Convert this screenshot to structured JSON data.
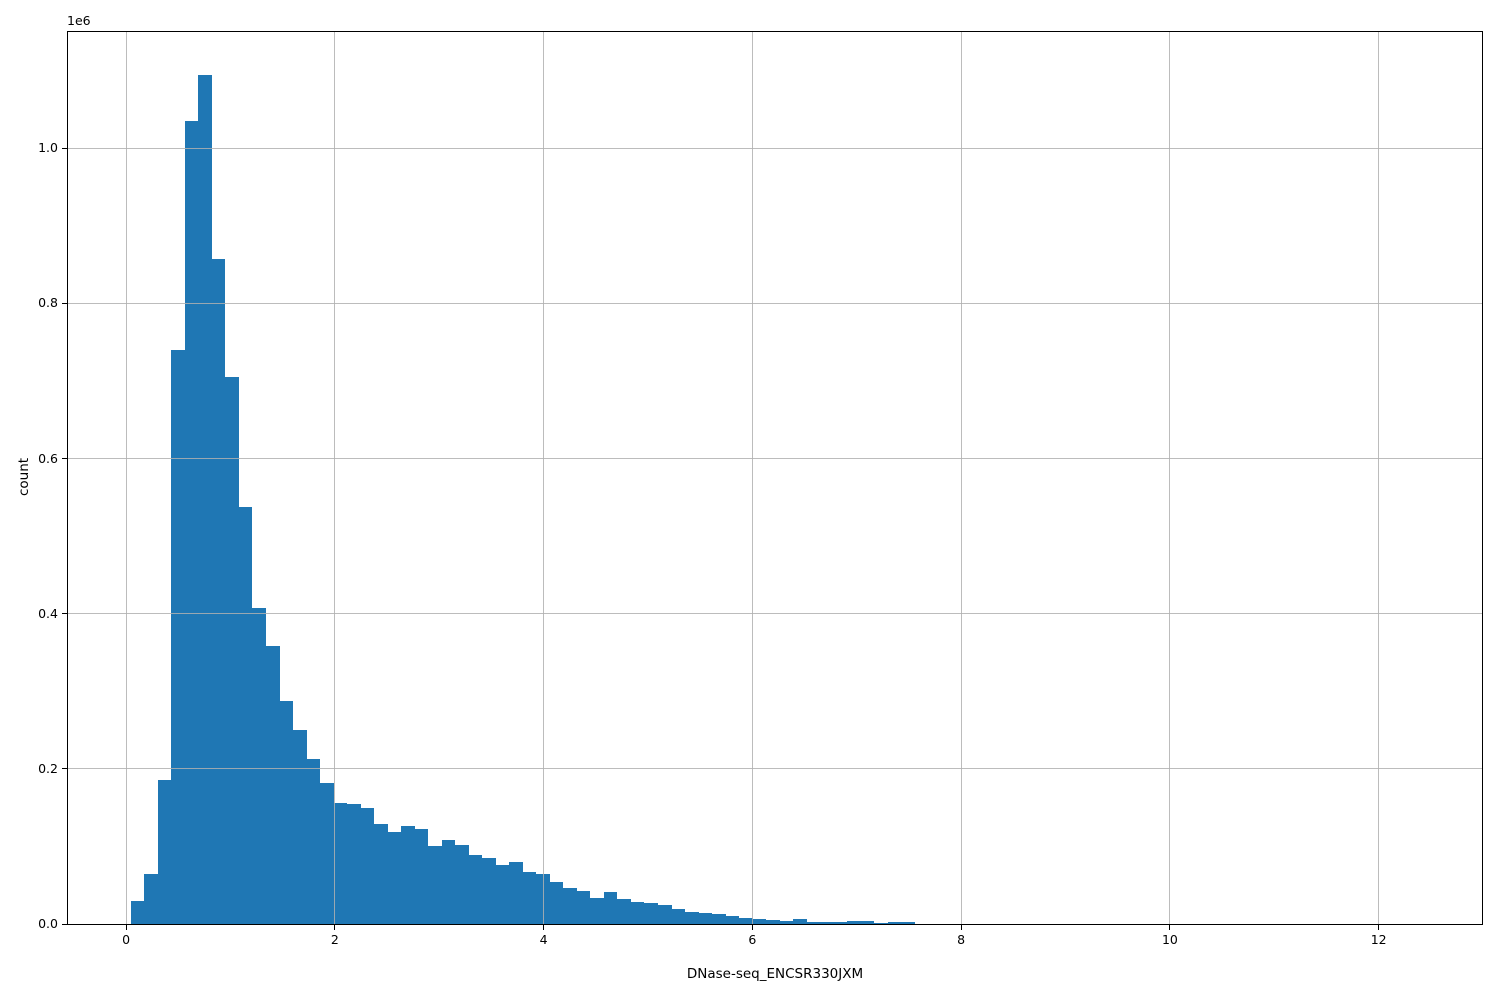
{
  "chart_data": {
    "type": "bar",
    "subtype": "histogram",
    "title": "",
    "xlabel": "DNase-seq_ENCSR330JXM",
    "ylabel": "count",
    "y_offset_text": "1e6",
    "xlim": [
      -0.557,
      12.99
    ],
    "ylim": [
      0,
      1150000
    ],
    "x_ticks": [
      0,
      2,
      4,
      6,
      8,
      10,
      12
    ],
    "x_tick_labels": [
      "0",
      "2",
      "4",
      "6",
      "8",
      "10",
      "12"
    ],
    "y_ticks": [
      0,
      200000,
      400000,
      600000,
      800000,
      1000000
    ],
    "y_tick_labels": [
      "0.0",
      "0.2",
      "0.4",
      "0.6",
      "0.8",
      "1.0"
    ],
    "grid": true,
    "grid_on_top_of_bars": true,
    "legend": false,
    "colors": {
      "bar": "#1f77b4",
      "grid": "#b0b0b0",
      "spine": "#000000",
      "text": "#000000",
      "background": "#ffffff"
    },
    "histogram": {
      "bin_start": 0.045,
      "bin_width": 0.1295,
      "counts": [
        30000,
        65000,
        186000,
        740000,
        1035000,
        1095000,
        858000,
        705000,
        538000,
        408000,
        359000,
        287000,
        250000,
        213000,
        182000,
        156000,
        155000,
        150000,
        129000,
        119000,
        127000,
        122000,
        100000,
        108000,
        102000,
        89000,
        85000,
        76000,
        80000,
        67000,
        64000,
        54000,
        47000,
        43000,
        34000,
        41000,
        32000,
        29000,
        27000,
        24000,
        19000,
        16000,
        14000,
        13000,
        10000,
        8000,
        6000,
        5000,
        4200,
        6000,
        3000,
        2000,
        2000,
        4000,
        3500,
        1000,
        3000,
        2000
      ]
    }
  }
}
